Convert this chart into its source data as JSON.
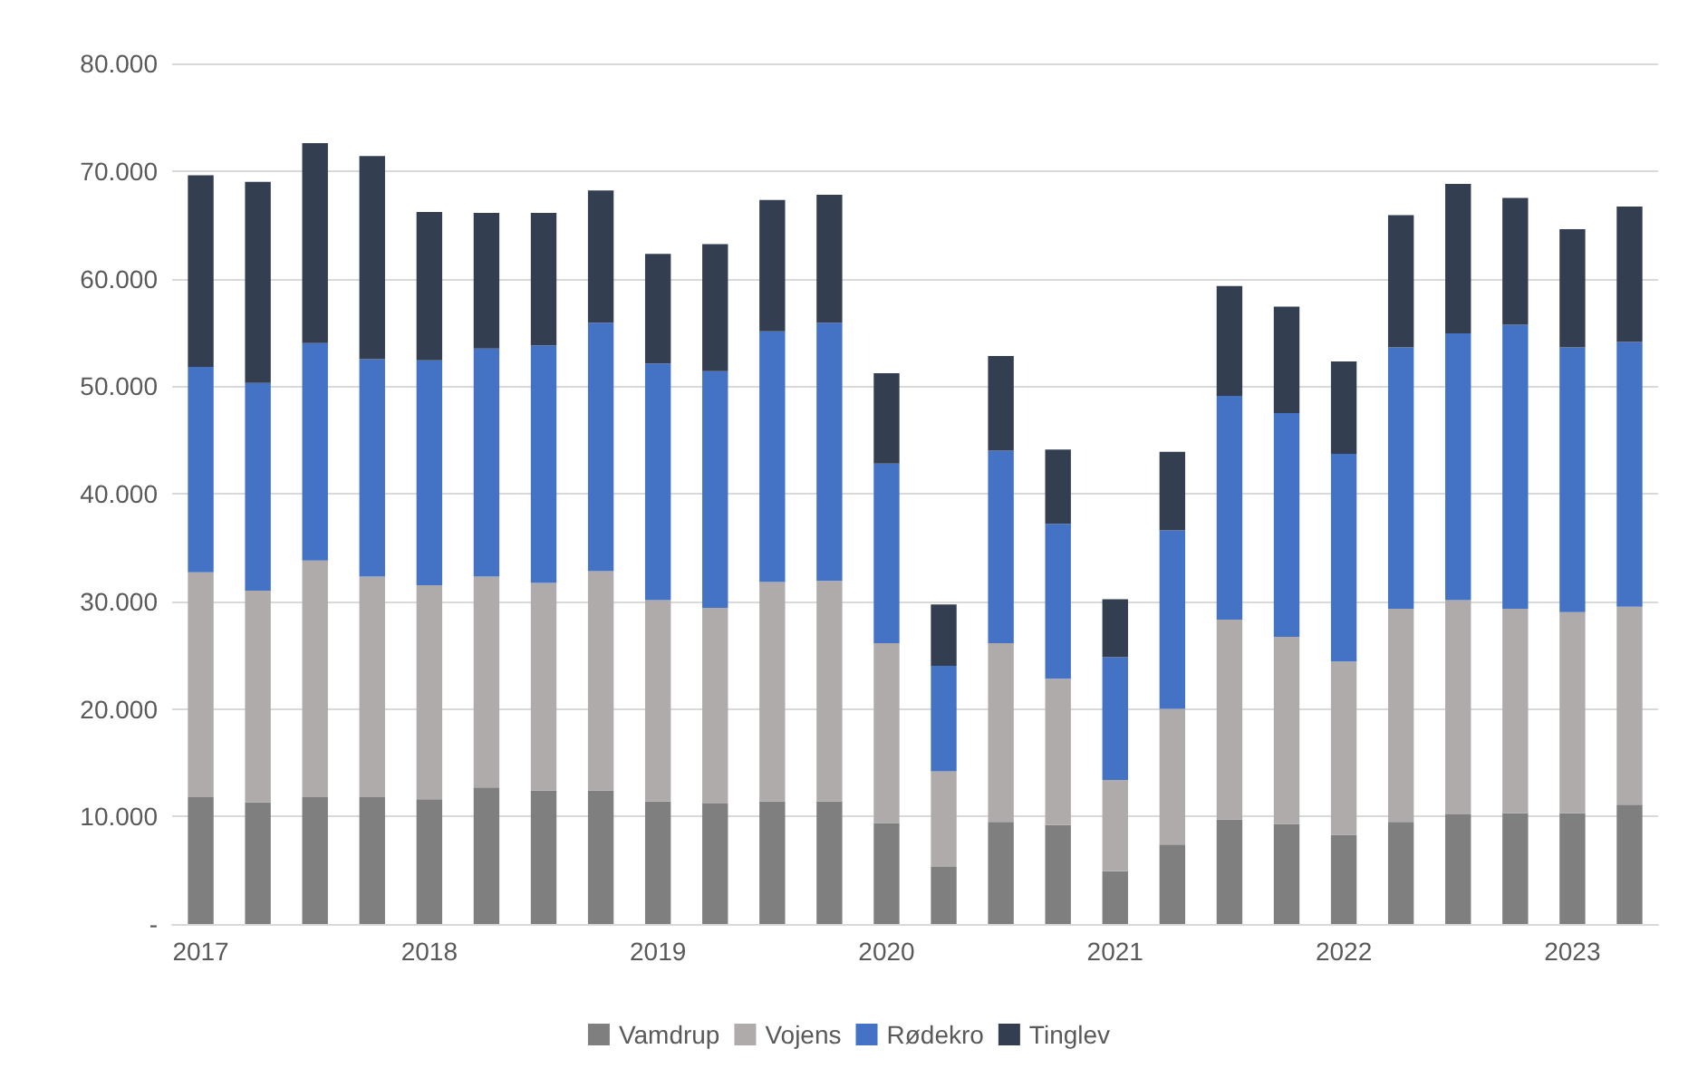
{
  "chart_data": {
    "type": "bar",
    "stacked": true,
    "categories": [
      "2017",
      null,
      null,
      null,
      "2018",
      null,
      null,
      null,
      "2019",
      null,
      null,
      null,
      "2020",
      null,
      null,
      null,
      "2021",
      null,
      null,
      null,
      "2022",
      null,
      null,
      null,
      "2023",
      null
    ],
    "series": [
      {
        "name": "Vamdrup",
        "color": "#7f7f7f",
        "values": [
          11800,
          11300,
          11800,
          11800,
          11600,
          12700,
          12400,
          12400,
          11400,
          11200,
          11400,
          11400,
          9400,
          5300,
          9500,
          9200,
          4900,
          7400,
          9700,
          9300,
          8300,
          9500,
          10200,
          10300,
          10300,
          11100
        ]
      },
      {
        "name": "Vojens",
        "color": "#afabab",
        "values": [
          20900,
          19700,
          22000,
          20500,
          19900,
          19600,
          19300,
          20400,
          18700,
          18200,
          20400,
          20500,
          16700,
          8900,
          16600,
          13600,
          8500,
          12600,
          18600,
          17400,
          16100,
          19800,
          19900,
          19000,
          18700,
          18400
        ]
      },
      {
        "name": "Rødekro",
        "color": "#4472c4",
        "values": [
          19100,
          19300,
          20200,
          20200,
          20900,
          21200,
          22100,
          23100,
          22000,
          22000,
          23300,
          24000,
          16700,
          9800,
          17900,
          14400,
          11400,
          16600,
          20800,
          20800,
          19300,
          24300,
          24800,
          26400,
          24600,
          24600
        ]
      },
      {
        "name": "Tinglev",
        "color": "#333f50",
        "values": [
          17800,
          18700,
          18600,
          18900,
          13800,
          12600,
          12300,
          12300,
          10200,
          11800,
          12200,
          11900,
          8400,
          5700,
          8800,
          6900,
          5400,
          7300,
          10200,
          9900,
          8600,
          12300,
          13900,
          11800,
          11000,
          12600
        ]
      }
    ],
    "ylim": [
      0,
      80000
    ],
    "yticks": [
      {
        "value": 0,
        "label": "-"
      },
      {
        "value": 10000,
        "label": "10.000"
      },
      {
        "value": 20000,
        "label": "20.000"
      },
      {
        "value": 30000,
        "label": "30.000"
      },
      {
        "value": 40000,
        "label": "40.000"
      },
      {
        "value": 50000,
        "label": "50.000"
      },
      {
        "value": 60000,
        "label": "60.000"
      },
      {
        "value": 70000,
        "label": "70.000"
      },
      {
        "value": 80000,
        "label": "80.000"
      }
    ],
    "grid": "y",
    "legend": "bottom"
  }
}
